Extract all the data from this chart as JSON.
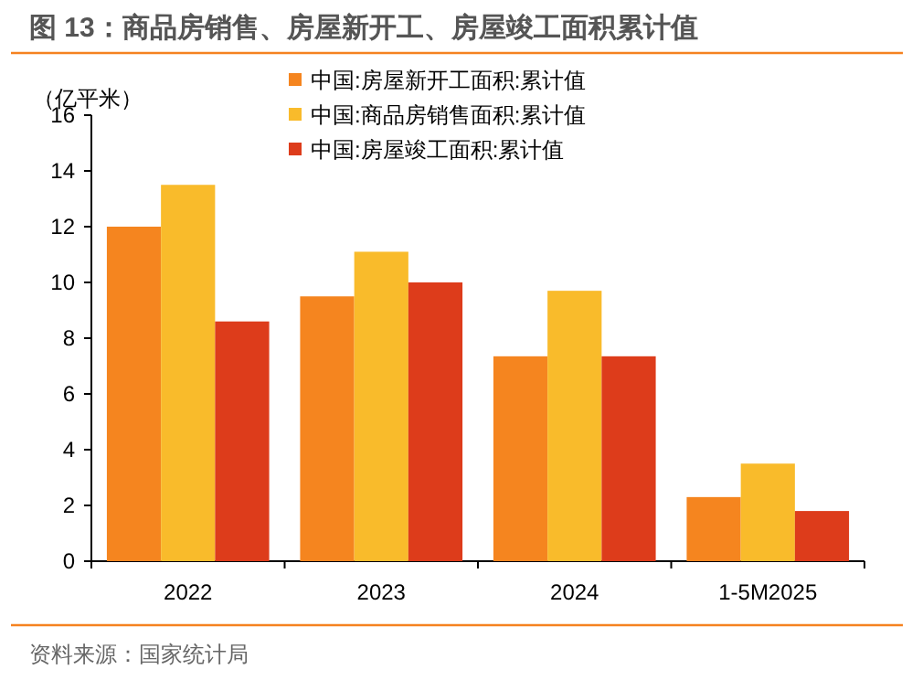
{
  "chart_data": {
    "type": "bar",
    "title": "图 13：商品房销售、房屋新开工、房屋竣工面积累计值",
    "ylabel": "（亿平米）",
    "categories": [
      "2022",
      "2023",
      "2024",
      "1-5M2025"
    ],
    "series": [
      {
        "name": "中国:房屋新开工面积:累计值",
        "color": "#f5851f",
        "values": [
          12.0,
          9.5,
          7.35,
          2.3
        ]
      },
      {
        "name": "中国:商品房销售面积:累计值",
        "color": "#f9bb2b",
        "values": [
          13.5,
          11.1,
          9.7,
          3.5
        ]
      },
      {
        "name": "中国:房屋竣工面积:累计值",
        "color": "#dd3c1b",
        "values": [
          8.6,
          10.0,
          7.35,
          1.8
        ]
      }
    ],
    "ylim": [
      0,
      16
    ],
    "yticks": [
      0,
      2,
      4,
      6,
      8,
      10,
      12,
      14,
      16
    ],
    "grid": false,
    "legend": "top",
    "annotations": [
      "资料来源：国家统计局"
    ]
  }
}
